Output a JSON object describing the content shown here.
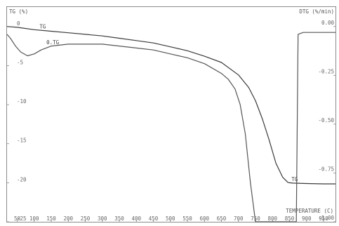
{
  "chart_data": {
    "type": "line",
    "y_left_label": "TG (%)",
    "y_right_label": "DTG (%/min)",
    "x_label": "TEMPERATURE (C)",
    "x_range": [
      20,
      985
    ],
    "y_left_range": [
      2.5,
      -25
    ],
    "y_right_range": [
      0.1,
      -1.0
    ],
    "x_ticks": [
      "50",
      "100",
      "150",
      "200",
      "250",
      "300",
      "350",
      "400",
      "450",
      "500",
      "550",
      "600",
      "650",
      "700",
      "750",
      "800",
      "850",
      "900",
      "950"
    ],
    "x_tick_values": [
      50,
      100,
      150,
      200,
      250,
      300,
      350,
      400,
      450,
      500,
      550,
      600,
      650,
      700,
      750,
      800,
      850,
      900,
      950
    ],
    "y_left_ticks": [
      "0",
      "-5",
      "-10",
      "-15",
      "-20",
      "-25"
    ],
    "y_left_tick_values": [
      0,
      -5,
      -10,
      -15,
      -20,
      -25
    ],
    "y_right_ticks": [
      "0.00",
      "-0.25",
      "-0.50",
      "-0.75",
      "-1.00"
    ],
    "y_right_tick_values": [
      0,
      -0.25,
      -0.5,
      -0.75,
      -1.0
    ],
    "series": [
      {
        "name": "TG",
        "axis": "left",
        "color": "#3a3a3a",
        "x": [
          20,
          50,
          100,
          150,
          200,
          250,
          300,
          350,
          400,
          450,
          500,
          550,
          600,
          650,
          700,
          730,
          750,
          770,
          790,
          810,
          830,
          845,
          850,
          860,
          900,
          950,
          985
        ],
        "y": [
          0,
          -0.1,
          -0.4,
          -0.6,
          -0.8,
          -1.0,
          -1.2,
          -1.5,
          -1.8,
          -2.1,
          -2.6,
          -3.1,
          -3.8,
          -4.6,
          -6.2,
          -7.8,
          -9.5,
          -11.8,
          -14.5,
          -17.5,
          -19.3,
          -19.95,
          -20.0,
          -20.05,
          -20.1,
          -20.15,
          -20.15
        ]
      },
      {
        "name": "DTG",
        "axis": "right",
        "color": "#555555",
        "x": [
          20,
          30,
          45,
          60,
          80,
          100,
          120,
          150,
          200,
          250,
          300,
          350,
          400,
          450,
          500,
          550,
          600,
          650,
          670,
          690,
          705,
          720,
          735,
          750,
          760,
          870,
          875,
          890,
          920,
          950,
          985
        ],
        "y": [
          -0.04,
          -0.06,
          -0.1,
          -0.13,
          -0.15,
          -0.14,
          -0.12,
          -0.1,
          -0.09,
          -0.09,
          -0.09,
          -0.1,
          -0.11,
          -0.12,
          -0.14,
          -0.16,
          -0.19,
          -0.24,
          -0.27,
          -0.32,
          -0.4,
          -0.55,
          -0.8,
          -1.0,
          -1.0,
          -1.0,
          -0.04,
          -0.03,
          -0.03,
          -0.03,
          -0.03
        ]
      }
    ],
    "series_labels": [
      {
        "text": "TG",
        "series": 0,
        "x": 128
      },
      {
        "text": "TG",
        "series": 0,
        "x": 868
      },
      {
        "text": "0.TG",
        "series": 1,
        "x": 148
      }
    ],
    "grid": false,
    "legend": "none"
  }
}
